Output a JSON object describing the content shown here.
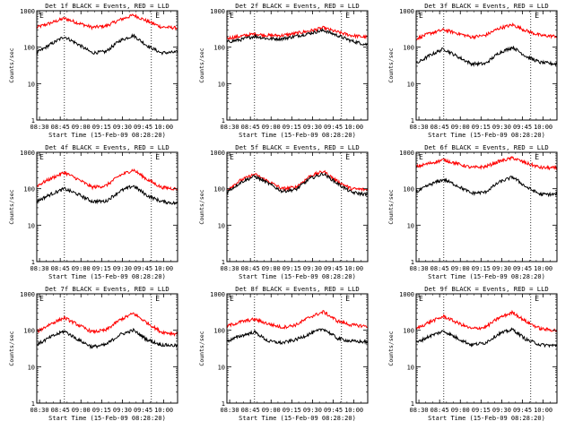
{
  "colors": {
    "background": "#ffffff",
    "events": "#000000",
    "lld": "#ff0000",
    "axes": "#000000"
  },
  "chart_data": [
    {
      "type": "line",
      "title": "Det 1f BLACK = Events, RED = LLD",
      "xlabel": "Start Time (15-Feb-09 08:28:20)",
      "ylabel": "Counts/sec",
      "ylog": true,
      "ylim": [
        1,
        1000
      ],
      "yticks": [
        "1",
        "10",
        "100",
        "1000"
      ],
      "xticks": [
        "08:30",
        "08:45",
        "09:00",
        "09:15",
        "09:30",
        "09:45",
        "10:00"
      ],
      "vlines": [
        "08:48",
        "09:51"
      ],
      "markers": [
        {
          "label": "E",
          "at": "08:28"
        },
        {
          "label": "E",
          "at": "09:52"
        }
      ],
      "grid": false,
      "legend": "none",
      "series": [
        {
          "color": "#ff0000",
          "x": [
            "08:28",
            "08:38",
            "08:48",
            "08:58",
            "09:08",
            "09:18",
            "09:28",
            "09:38",
            "09:48",
            "09:58",
            "10:08"
          ],
          "values": [
            350,
            460,
            620,
            460,
            350,
            380,
            560,
            760,
            520,
            360,
            340
          ]
        },
        {
          "color": "#000000",
          "x": [
            "08:28",
            "08:38",
            "08:48",
            "08:58",
            "09:08",
            "09:18",
            "09:28",
            "09:38",
            "09:48",
            "09:58",
            "10:08"
          ],
          "values": [
            70,
            120,
            195,
            120,
            70,
            75,
            150,
            210,
            110,
            70,
            72
          ]
        }
      ]
    },
    {
      "type": "line",
      "title": "Det 2f BLACK = Events, RED = LLD",
      "xlabel": "Start Time (15-Feb-09 08:28:20)",
      "ylabel": "Counts/sec",
      "ylog": true,
      "ylim": [
        1,
        1000
      ],
      "yticks": [
        "1",
        "10",
        "100",
        "1000"
      ],
      "xticks": [
        "08:30",
        "08:45",
        "09:00",
        "09:15",
        "09:30",
        "09:45",
        "10:00"
      ],
      "vlines": [
        "08:48",
        "09:51"
      ],
      "markers": [
        {
          "label": "E",
          "at": "08:28"
        },
        {
          "label": "E",
          "at": "09:52"
        }
      ],
      "grid": false,
      "legend": "none",
      "series": [
        {
          "color": "#ff0000",
          "x": [
            "08:28",
            "08:38",
            "08:48",
            "08:58",
            "09:08",
            "09:18",
            "09:28",
            "09:38",
            "09:48",
            "09:58",
            "10:08"
          ],
          "values": [
            175,
            200,
            230,
            210,
            210,
            240,
            280,
            340,
            260,
            210,
            190
          ]
        },
        {
          "color": "#000000",
          "x": [
            "08:28",
            "08:38",
            "08:48",
            "08:58",
            "09:08",
            "09:18",
            "09:28",
            "09:38",
            "09:48",
            "09:58",
            "10:08"
          ],
          "values": [
            140,
            160,
            200,
            170,
            170,
            200,
            240,
            290,
            210,
            150,
            120
          ]
        }
      ]
    },
    {
      "type": "line",
      "title": "Det 3f BLACK = Events, RED = LLD",
      "xlabel": "Start Time (15-Feb-09 08:28:20)",
      "ylabel": "Counts/sec",
      "ylog": true,
      "ylim": [
        1,
        1000
      ],
      "yticks": [
        "1",
        "10",
        "100",
        "1000"
      ],
      "xticks": [
        "08:30",
        "08:45",
        "09:00",
        "09:15",
        "09:30",
        "09:45",
        "10:00"
      ],
      "vlines": [
        "08:48",
        "09:51"
      ],
      "markers": [
        {
          "label": "E",
          "at": "08:28"
        },
        {
          "label": "E",
          "at": "09:52"
        }
      ],
      "grid": false,
      "legend": "none",
      "series": [
        {
          "color": "#ff0000",
          "x": [
            "08:28",
            "08:38",
            "08:48",
            "08:58",
            "09:08",
            "09:18",
            "09:28",
            "09:38",
            "09:48",
            "09:58",
            "10:08"
          ],
          "values": [
            170,
            240,
            300,
            240,
            190,
            210,
            330,
            410,
            280,
            210,
            200
          ]
        },
        {
          "color": "#000000",
          "x": [
            "08:28",
            "08:38",
            "08:48",
            "08:58",
            "09:08",
            "09:18",
            "09:28",
            "09:38",
            "09:48",
            "09:58",
            "10:08"
          ],
          "values": [
            35,
            60,
            90,
            55,
            35,
            35,
            70,
            100,
            55,
            38,
            35
          ]
        }
      ]
    },
    {
      "type": "line",
      "title": "Det 4f BLACK = Events, RED = LLD",
      "xlabel": "Start Time (15-Feb-09 08:28:20)",
      "ylabel": "Counts/sec",
      "ylog": true,
      "ylim": [
        1,
        1000
      ],
      "yticks": [
        "1",
        "10",
        "100",
        "1000"
      ],
      "xticks": [
        "08:30",
        "08:45",
        "09:00",
        "09:15",
        "09:30",
        "09:45",
        "10:00"
      ],
      "vlines": [
        "08:48",
        "09:51"
      ],
      "markers": [
        {
          "label": "E",
          "at": "08:28"
        },
        {
          "label": "E",
          "at": "09:52"
        }
      ],
      "grid": false,
      "legend": "none",
      "series": [
        {
          "color": "#ff0000",
          "x": [
            "08:28",
            "08:38",
            "08:48",
            "08:58",
            "09:08",
            "09:18",
            "09:28",
            "09:38",
            "09:48",
            "09:58",
            "10:08"
          ],
          "values": [
            120,
            190,
            280,
            180,
            110,
            120,
            230,
            330,
            180,
            110,
            100
          ]
        },
        {
          "color": "#000000",
          "x": [
            "08:28",
            "08:38",
            "08:48",
            "08:58",
            "09:08",
            "09:18",
            "09:28",
            "09:38",
            "09:48",
            "09:58",
            "10:08"
          ],
          "values": [
            45,
            70,
            100,
            70,
            45,
            45,
            85,
            120,
            65,
            45,
            40
          ]
        }
      ]
    },
    {
      "type": "line",
      "title": "Det 5f BLACK = Events, RED = LLD",
      "xlabel": "Start Time (15-Feb-09 08:28:20)",
      "ylabel": "Counts/sec",
      "ylog": true,
      "ylim": [
        1,
        1000
      ],
      "yticks": [
        "1",
        "10",
        "100",
        "1000"
      ],
      "xticks": [
        "08:30",
        "08:45",
        "09:00",
        "09:15",
        "09:30",
        "09:45",
        "10:00"
      ],
      "vlines": [
        "08:48",
        "09:51"
      ],
      "markers": [
        {
          "label": "E",
          "at": "08:28"
        },
        {
          "label": "E",
          "at": "09:52"
        }
      ],
      "grid": false,
      "legend": "none",
      "series": [
        {
          "color": "#ff0000",
          "x": [
            "08:28",
            "08:38",
            "08:48",
            "08:58",
            "09:08",
            "09:18",
            "09:28",
            "09:38",
            "09:48",
            "09:58",
            "10:08"
          ],
          "values": [
            95,
            170,
            250,
            160,
            100,
            110,
            220,
            300,
            160,
            100,
            95
          ]
        },
        {
          "color": "#000000",
          "x": [
            "08:28",
            "08:38",
            "08:48",
            "08:58",
            "09:08",
            "09:18",
            "09:28",
            "09:38",
            "09:48",
            "09:58",
            "10:08"
          ],
          "values": [
            80,
            150,
            220,
            140,
            85,
            95,
            190,
            260,
            140,
            80,
            70
          ]
        }
      ]
    },
    {
      "type": "line",
      "title": "Det 6f BLACK = Events, RED = LLD",
      "xlabel": "Start Time (15-Feb-09 08:28:20)",
      "ylabel": "Counts/sec",
      "ylog": true,
      "ylim": [
        1,
        1000
      ],
      "yticks": [
        "1",
        "10",
        "100",
        "1000"
      ],
      "xticks": [
        "08:30",
        "08:45",
        "09:00",
        "09:15",
        "09:30",
        "09:45",
        "10:00"
      ],
      "vlines": [
        "08:48",
        "09:51"
      ],
      "markers": [
        {
          "label": "E",
          "at": "08:28"
        },
        {
          "label": "E",
          "at": "09:52"
        }
      ],
      "grid": false,
      "legend": "none",
      "series": [
        {
          "color": "#ff0000",
          "x": [
            "08:28",
            "08:38",
            "08:48",
            "08:58",
            "09:08",
            "09:18",
            "09:28",
            "09:38",
            "09:48",
            "09:58",
            "10:08"
          ],
          "values": [
            400,
            500,
            620,
            480,
            380,
            400,
            560,
            700,
            500,
            380,
            370
          ]
        },
        {
          "color": "#000000",
          "x": [
            "08:28",
            "08:38",
            "08:48",
            "08:58",
            "09:08",
            "09:18",
            "09:28",
            "09:38",
            "09:48",
            "09:58",
            "10:08"
          ],
          "values": [
            80,
            130,
            180,
            120,
            75,
            80,
            150,
            210,
            110,
            70,
            70
          ]
        }
      ]
    },
    {
      "type": "line",
      "title": "Det 7f BLACK = Events, RED = LLD",
      "xlabel": "Start Time (15-Feb-09 08:28:20)",
      "ylabel": "Counts/sec",
      "ylog": true,
      "ylim": [
        1,
        1000
      ],
      "yticks": [
        "1",
        "10",
        "100",
        "1000"
      ],
      "xticks": [
        "08:30",
        "08:45",
        "09:00",
        "09:15",
        "09:30",
        "09:45",
        "10:00"
      ],
      "vlines": [
        "08:48",
        "09:51"
      ],
      "markers": [
        {
          "label": "E",
          "at": "08:28"
        },
        {
          "label": "E",
          "at": "09:52"
        }
      ],
      "grid": false,
      "legend": "none",
      "series": [
        {
          "color": "#ff0000",
          "x": [
            "08:28",
            "08:38",
            "08:48",
            "08:58",
            "09:08",
            "09:18",
            "09:28",
            "09:38",
            "09:48",
            "09:58",
            "10:08"
          ],
          "values": [
            90,
            150,
            220,
            140,
            90,
            100,
            190,
            290,
            160,
            90,
            80
          ]
        },
        {
          "color": "#000000",
          "x": [
            "08:28",
            "08:38",
            "08:48",
            "08:58",
            "09:08",
            "09:18",
            "09:28",
            "09:38",
            "09:48",
            "09:58",
            "10:08"
          ],
          "values": [
            40,
            65,
            95,
            55,
            35,
            40,
            75,
            100,
            55,
            40,
            38
          ]
        }
      ]
    },
    {
      "type": "line",
      "title": "Det 8f BLACK = Events, RED = LLD",
      "xlabel": "Start Time (15-Feb-09 08:28:20)",
      "ylabel": "Counts/sec",
      "ylog": true,
      "ylim": [
        1,
        1000
      ],
      "yticks": [
        "1",
        "10",
        "100",
        "1000"
      ],
      "xticks": [
        "08:30",
        "08:45",
        "09:00",
        "09:15",
        "09:30",
        "09:45",
        "10:00"
      ],
      "vlines": [
        "08:48",
        "09:51"
      ],
      "markers": [
        {
          "label": "E",
          "at": "08:28"
        },
        {
          "label": "E",
          "at": "09:52"
        }
      ],
      "grid": false,
      "legend": "none",
      "series": [
        {
          "color": "#ff0000",
          "x": [
            "08:28",
            "08:38",
            "08:48",
            "08:58",
            "09:08",
            "09:18",
            "09:28",
            "09:38",
            "09:48",
            "09:58",
            "10:08"
          ],
          "values": [
            130,
            170,
            200,
            150,
            120,
            140,
            230,
            320,
            180,
            140,
            130
          ]
        },
        {
          "color": "#000000",
          "x": [
            "08:28",
            "08:38",
            "08:48",
            "08:58",
            "09:08",
            "09:18",
            "09:28",
            "09:38",
            "09:48",
            "09:58",
            "10:08"
          ],
          "values": [
            50,
            70,
            90,
            50,
            45,
            55,
            80,
            110,
            60,
            50,
            48
          ]
        }
      ]
    },
    {
      "type": "line",
      "title": "Det 9f BLACK = Events, RED = LLD",
      "xlabel": "Start Time (15-Feb-09 08:28:20)",
      "ylabel": "Counts/sec",
      "ylog": true,
      "ylim": [
        1,
        1000
      ],
      "yticks": [
        "1",
        "10",
        "100",
        "1000"
      ],
      "xticks": [
        "08:30",
        "08:45",
        "09:00",
        "09:15",
        "09:30",
        "09:45",
        "10:00"
      ],
      "vlines": [
        "08:48",
        "09:51"
      ],
      "markers": [
        {
          "label": "E",
          "at": "08:28"
        },
        {
          "label": "E",
          "at": "09:52"
        }
      ],
      "grid": false,
      "legend": "none",
      "series": [
        {
          "color": "#ff0000",
          "x": [
            "08:28",
            "08:38",
            "08:48",
            "08:58",
            "09:08",
            "09:18",
            "09:28",
            "09:38",
            "09:48",
            "09:58",
            "10:08"
          ],
          "values": [
            110,
            170,
            240,
            160,
            110,
            120,
            220,
            310,
            170,
            110,
            100
          ]
        },
        {
          "color": "#000000",
          "x": [
            "08:28",
            "08:38",
            "08:48",
            "08:58",
            "09:08",
            "09:18",
            "09:28",
            "09:38",
            "09:48",
            "09:58",
            "10:08"
          ],
          "values": [
            45,
            70,
            95,
            60,
            40,
            45,
            80,
            105,
            55,
            40,
            38
          ]
        }
      ]
    }
  ]
}
